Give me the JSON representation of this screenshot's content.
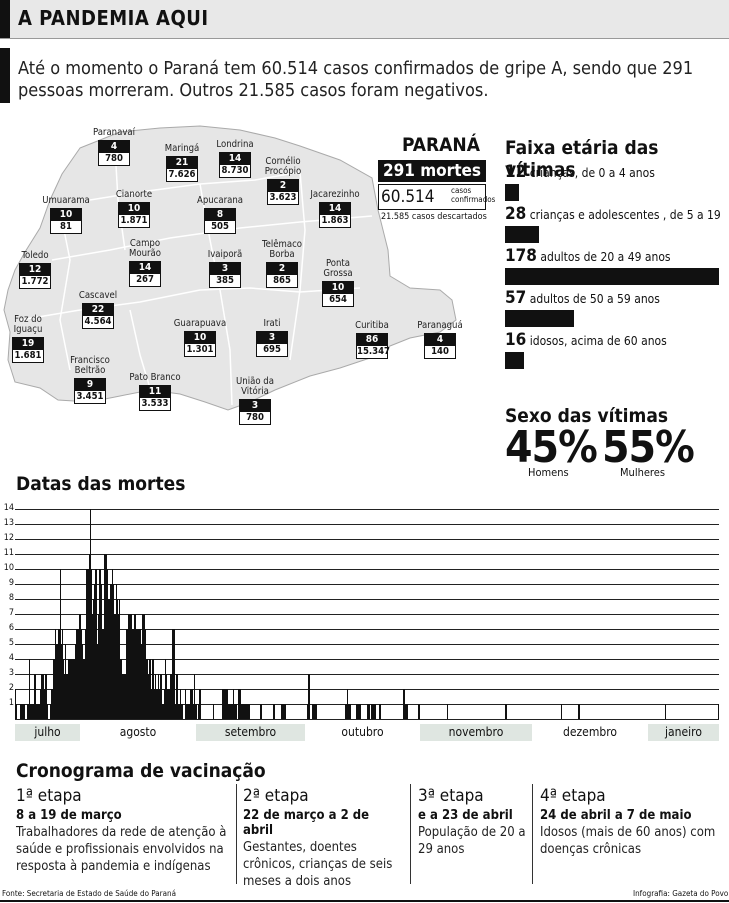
{
  "header": {
    "title": "A PANDEMIA AQUI"
  },
  "intro": "Até o momento o Paraná tem 60.514 casos confirmados de gripe A, sendo que 291 pessoas morreram. Outros 21.585 casos foram negativos.",
  "map": {
    "cities": [
      {
        "name": "Paranavaí",
        "deaths": "4",
        "cases": "780"
      },
      {
        "name": "Maringá",
        "deaths": "21",
        "cases": "7.626"
      },
      {
        "name": "Londrina",
        "deaths": "14",
        "cases": "8.730"
      },
      {
        "name": "Cornélio Procópio",
        "deaths": "2",
        "cases": "3.623"
      },
      {
        "name": "Jacarezinho",
        "deaths": "14",
        "cases": "1.863"
      },
      {
        "name": "Umuarama",
        "deaths": "10",
        "cases": "81"
      },
      {
        "name": "Cianorte",
        "deaths": "10",
        "cases": "1.871"
      },
      {
        "name": "Apucarana",
        "deaths": "8",
        "cases": "505"
      },
      {
        "name": "Campo Mourão",
        "deaths": "14",
        "cases": "267"
      },
      {
        "name": "Ivaiporã",
        "deaths": "3",
        "cases": "385"
      },
      {
        "name": "Telêmaco Borba",
        "deaths": "2",
        "cases": "865"
      },
      {
        "name": "Toledo",
        "deaths": "12",
        "cases": "1.772"
      },
      {
        "name": "Ponta Grossa",
        "deaths": "10",
        "cases": "654"
      },
      {
        "name": "Cascavel",
        "deaths": "22",
        "cases": "4.564"
      },
      {
        "name": "Foz do Iguaçu",
        "deaths": "19",
        "cases": "1.681"
      },
      {
        "name": "Guarapuava",
        "deaths": "10",
        "cases": "1.301"
      },
      {
        "name": "Irati",
        "deaths": "3",
        "cases": "695"
      },
      {
        "name": "Curitiba",
        "deaths": "86",
        "cases": "15.347"
      },
      {
        "name": "Paranaguá",
        "deaths": "4",
        "cases": "140"
      },
      {
        "name": "Francisco Beltrão",
        "deaths": "9",
        "cases": "3.451"
      },
      {
        "name": "Pato Branco",
        "deaths": "11",
        "cases": "3.533"
      },
      {
        "name": "União da Vitória",
        "deaths": "3",
        "cases": "780"
      }
    ]
  },
  "parana": {
    "title": "PARANÁ",
    "deaths": "291 mortes",
    "confirmed_num": "60.514",
    "confirmed_label": "casos confirmados",
    "discarded": "21.585 casos descartados"
  },
  "age": {
    "title": "Faixa etária das vítimas",
    "groups": [
      {
        "count": "12",
        "label": "crianças, de 0 a 4 anos",
        "value": 12
      },
      {
        "count": "28",
        "label": "crianças e adolescentes , de 5 a 19 anos",
        "value": 28
      },
      {
        "count": "178",
        "label": "adultos de 20 a 49 anos",
        "value": 178
      },
      {
        "count": "57",
        "label": "adultos de 50 a 59 anos",
        "value": 57
      },
      {
        "count": "16",
        "label": "idosos, acima de 60 anos",
        "value": 16
      }
    ]
  },
  "sex": {
    "title": "Sexo das vítimas",
    "men_pct": "45%",
    "men_label": "Homens",
    "women_pct": "55%",
    "women_label": "Mulheres"
  },
  "chart_data": {
    "type": "bar",
    "title": "Datas das mortes",
    "ylim": [
      0,
      14
    ],
    "yticks": [
      "1",
      "2",
      "3",
      "4",
      "5",
      "6",
      "7",
      "8",
      "9",
      "10",
      "11",
      "12",
      "13",
      "14"
    ],
    "months": [
      "julho",
      "agosto",
      "setembro",
      "outubro",
      "novembro",
      "dezembro",
      "janeiro"
    ],
    "values": [
      2,
      1,
      0,
      0,
      0,
      1,
      1,
      1,
      1,
      1,
      0,
      0,
      1,
      1,
      4,
      1,
      1,
      0,
      1,
      1,
      3,
      1,
      1,
      0,
      1,
      1,
      2,
      3,
      3,
      1,
      2,
      3,
      3,
      1,
      0,
      0,
      1,
      2,
      2,
      4,
      4,
      6,
      5,
      5,
      6,
      6,
      10,
      5,
      6,
      4,
      3,
      5,
      3,
      3,
      2,
      4,
      3,
      4,
      4,
      4,
      4,
      2,
      5,
      6,
      6,
      4,
      7,
      7,
      6,
      5,
      4,
      4,
      6,
      10,
      10,
      10,
      11,
      14,
      10,
      7,
      8,
      9,
      10,
      10,
      5,
      7,
      10,
      10,
      9,
      6,
      5,
      6,
      11,
      11,
      10,
      8,
      7,
      8,
      9,
      9,
      10,
      9,
      7,
      7,
      9,
      8,
      7,
      8,
      4,
      4,
      3,
      3,
      3,
      3,
      6,
      6,
      7,
      7,
      7,
      7,
      6,
      6,
      5,
      7,
      6,
      6,
      6,
      2,
      6,
      5,
      5,
      7,
      7,
      6,
      3,
      4,
      4,
      3,
      4,
      4,
      2,
      4,
      4,
      2,
      3,
      2,
      2,
      3,
      2,
      3,
      3,
      1,
      1,
      2,
      4,
      3,
      2,
      2,
      1,
      2,
      3,
      2,
      6,
      6,
      1,
      1,
      3,
      1,
      1,
      1,
      2,
      1,
      1,
      0,
      0,
      2,
      1,
      1,
      1,
      1,
      2,
      2,
      2,
      1,
      3,
      1,
      1,
      0,
      1,
      1,
      2,
      0,
      0,
      0,
      0,
      0,
      0,
      0,
      0,
      0,
      0,
      0,
      0,
      0,
      1,
      0,
      0,
      0,
      0,
      0,
      0,
      0,
      0,
      2,
      2,
      2,
      2,
      2,
      2,
      1,
      1,
      1,
      1,
      1,
      2,
      0,
      1,
      1,
      0,
      0,
      2,
      2,
      0,
      1,
      1,
      1,
      1,
      1,
      1,
      1,
      1,
      1,
      0,
      0,
      0,
      0,
      0,
      0,
      0,
      0,
      0,
      0,
      1,
      1,
      0,
      0,
      0,
      0,
      0,
      0,
      0,
      0,
      0,
      0,
      0,
      0,
      1,
      0,
      0,
      0,
      0,
      0,
      0,
      0,
      1,
      1,
      1,
      1,
      1,
      0,
      0,
      0,
      0,
      0,
      0,
      0,
      0,
      0,
      0,
      0,
      0,
      0,
      0,
      0,
      0,
      0,
      0,
      0,
      0,
      0,
      0,
      1,
      3,
      0,
      0,
      0,
      1,
      1,
      1,
      1,
      1,
      0,
      0,
      0,
      0,
      0,
      0,
      0,
      0,
      0,
      0,
      0,
      0,
      0,
      0,
      0,
      0,
      0,
      0,
      0,
      0,
      0,
      0,
      0,
      0,
      0,
      0,
      0,
      0,
      0,
      1,
      1,
      2,
      1,
      1,
      1,
      0,
      0,
      0,
      0,
      0,
      1,
      1,
      1,
      1,
      1,
      0,
      0,
      0,
      0,
      0,
      0,
      0,
      1,
      1,
      0,
      0,
      1,
      1,
      1,
      1,
      0,
      0,
      0,
      0,
      1,
      1,
      0,
      0,
      0,
      0,
      0,
      0,
      0,
      0,
      0,
      0,
      0,
      0,
      0,
      0,
      0,
      0,
      0,
      0,
      0,
      0,
      0,
      0,
      0,
      2,
      1,
      1,
      1,
      0,
      0,
      0,
      0,
      0,
      0,
      0,
      0,
      0,
      0,
      0,
      1,
      1,
      0,
      0,
      0,
      0,
      0,
      0,
      0,
      0,
      0,
      0,
      0,
      0,
      0,
      0,
      0,
      0,
      0,
      0,
      0,
      0,
      0,
      0,
      0,
      0,
      0,
      0,
      0,
      0,
      1,
      0,
      0,
      0,
      0,
      0,
      0,
      0,
      0,
      0,
      0,
      0,
      0,
      0,
      0,
      0,
      0,
      0,
      0,
      0,
      0,
      0,
      0,
      0,
      0,
      0,
      0,
      0,
      0,
      0,
      0,
      0,
      0,
      0,
      0,
      0,
      0,
      0,
      0,
      0,
      0,
      0,
      0,
      0,
      0,
      0,
      0,
      0,
      0,
      0,
      0,
      0,
      0,
      0,
      0,
      0,
      0,
      0,
      0,
      0,
      1,
      0,
      0,
      0,
      0,
      0,
      0,
      0,
      0,
      0,
      0,
      0,
      0,
      0,
      0,
      0,
      0,
      0,
      0,
      0,
      0,
      0,
      0,
      0,
      0,
      0,
      0,
      0,
      0,
      0,
      0,
      0,
      0,
      0,
      0,
      0,
      0,
      0,
      0,
      0,
      0,
      0,
      0,
      0,
      0,
      0,
      0,
      0,
      0,
      0,
      0,
      0,
      0,
      0,
      0,
      0,
      0,
      1,
      0,
      0,
      0,
      0,
      0,
      0,
      0,
      0,
      0,
      0,
      0,
      0,
      0,
      0,
      0,
      0,
      0,
      1,
      0,
      0,
      0,
      0,
      0,
      0,
      0,
      0,
      0,
      0,
      0,
      0,
      0,
      0,
      0,
      0,
      0,
      0,
      0,
      0,
      0,
      0,
      0,
      0,
      0,
      0,
      0,
      0,
      0,
      0,
      0,
      0,
      0,
      0,
      0,
      0,
      0,
      0,
      0,
      0,
      0,
      0,
      0,
      0,
      0,
      0,
      0,
      0,
      0,
      0,
      0,
      0,
      0,
      0,
      0,
      0,
      0,
      0,
      0,
      0,
      0,
      0,
      0,
      0,
      0,
      0,
      0,
      0,
      0,
      0,
      0,
      0,
      0,
      0,
      0,
      0,
      0,
      0,
      0,
      0,
      0,
      0,
      0,
      0,
      0,
      0,
      0,
      0,
      1,
      0,
      0,
      0,
      0,
      0,
      0,
      0,
      0,
      0,
      0,
      0,
      0,
      0,
      0,
      0,
      0,
      0,
      0,
      0,
      0,
      0,
      0,
      0,
      0,
      0,
      0,
      0,
      0,
      0,
      0,
      0,
      0,
      0,
      0,
      0,
      0,
      0,
      0,
      0,
      0,
      0,
      0,
      0,
      0,
      0,
      0,
      0,
      0,
      0,
      0,
      0,
      0,
      0,
      0,
      1
    ]
  },
  "vaccine": {
    "title": "Cronograma de vacinação",
    "stages": [
      {
        "label": "1ª etapa",
        "date": "8 a 19 de março",
        "desc": "Trabalhadores da rede de atenção à saúde e profissionais envolvidos na resposta à pandemia e indígenas"
      },
      {
        "label": "2ª etapa",
        "date": "22 de março a 2 de abril",
        "desc": "Gestantes, doentes crônicos, crianças de seis meses a dois anos"
      },
      {
        "label": "3ª etapa",
        "date": "e a 23 de abril",
        "desc": "População de 20 a 29 anos"
      },
      {
        "label": "4ª etapa",
        "date": "24 de abril a 7 de maio",
        "desc": "Idosos (mais de 60 anos) com doenças crônicas"
      }
    ]
  },
  "footer": {
    "source": "Fonte: Secretaria de Estado de Saúde do Paraná",
    "credit": "Infografia: Gazeta do Povo"
  }
}
